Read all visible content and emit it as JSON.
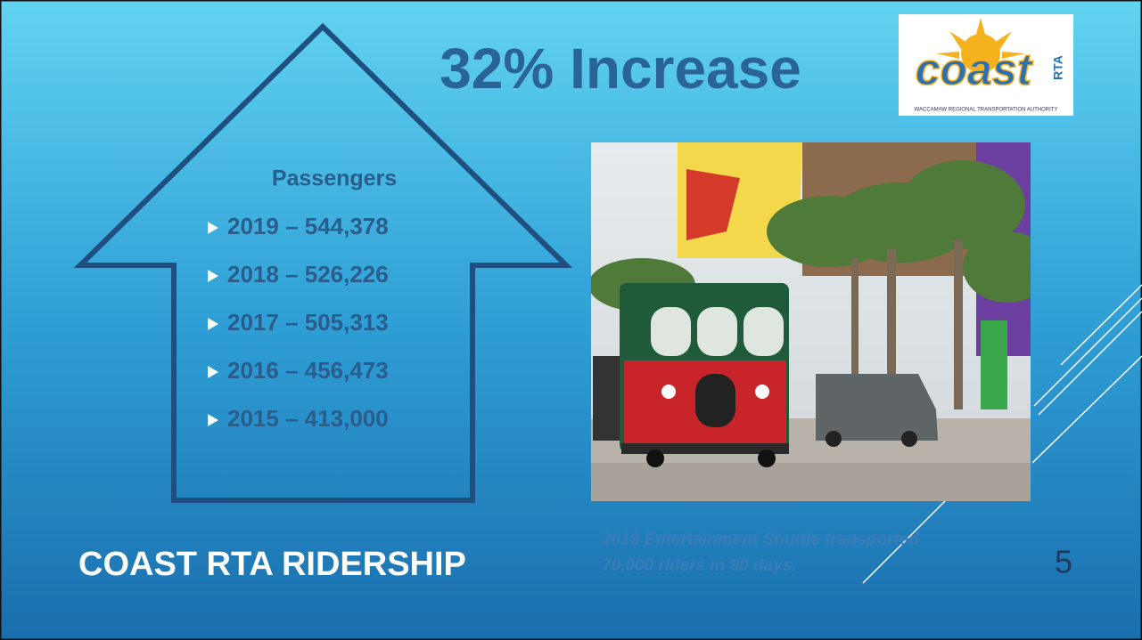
{
  "slide": {
    "title": "32% Increase",
    "list": {
      "heading": "Passengers",
      "items": [
        "2019 – 544,378",
        "2018 – 526,226",
        "2017 – 505,313",
        "2016 – 456,473",
        "2015 – 413,000"
      ]
    },
    "footer_title": "COAST RTA RIDERSHIP",
    "caption": [
      "2019 Entertainment Shuttle transported",
      "70,000 riders in 90 days."
    ],
    "page_number": "5",
    "logo": {
      "name": "coast",
      "badge": "RTA",
      "tagline": "WACCAMAW REGIONAL TRANSPORTATION AUTHORITY"
    }
  }
}
